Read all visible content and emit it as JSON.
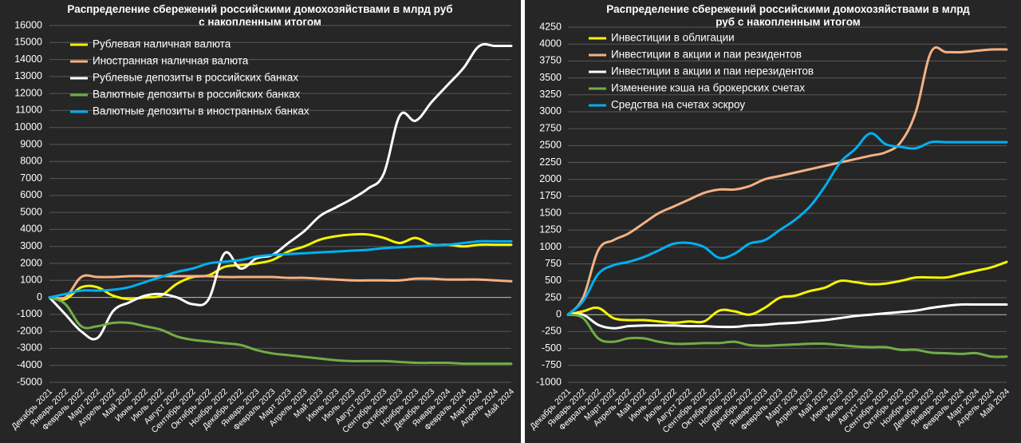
{
  "chart_data": [
    {
      "type": "line",
      "title": "Распределение сбережений российскими домохозяйствами в млрд руб с накопленным итогом",
      "title_lines": [
        "Распределение сбережений российскими домохозяйствами в млрд руб",
        "с накопленным итогом"
      ],
      "ylim": [
        -5000,
        16000
      ],
      "ytick_step": 1000,
      "yticks": [
        "-5000",
        "-4000",
        "-3000",
        "-2000",
        "-1000",
        "0",
        "1000",
        "2000",
        "3000",
        "4000",
        "5000",
        "6000",
        "7000",
        "8000",
        "9000",
        "10000",
        "11000",
        "12000",
        "13000",
        "14000",
        "15000",
        "16000"
      ],
      "grid": true,
      "legend_position": "top-left",
      "x": [
        "Декабрь 2021",
        "Январь 2022",
        "Февраль 2022",
        "Март 2022",
        "Апрель 2022",
        "Май 2022",
        "Июнь 2022",
        "Июль 2022",
        "Август 2022",
        "Сентябрь 2022",
        "Октябрь 2022",
        "Ноябрь 2022",
        "Декабрь 2022",
        "Январь 2023",
        "Февраль 2023",
        "Март 2023",
        "Апрель 2023",
        "Май 2023",
        "Июнь 2023",
        "Июль 2023",
        "Август 2023",
        "Сентябрь 2023",
        "Октябрь 2023",
        "Ноябрь 2023",
        "Декабрь 2023",
        "Январь 2024",
        "Февраль 2024",
        "Март 2024",
        "Апрель 2024",
        "Май 2024"
      ],
      "series": [
        {
          "name": "Рублевая наличная валюта",
          "color": "#f5f500",
          "values": [
            0,
            -100,
            600,
            600,
            100,
            -100,
            0,
            100,
            800,
            1200,
            1300,
            1800,
            1900,
            2000,
            2200,
            2700,
            3000,
            3400,
            3600,
            3700,
            3700,
            3500,
            3200,
            3500,
            3100,
            3100,
            3000,
            3100,
            3100,
            3100
          ]
        },
        {
          "name": "Иностранная наличная валюта",
          "color": "#f4b183",
          "values": [
            0,
            0,
            1200,
            1200,
            1200,
            1250,
            1250,
            1250,
            1250,
            1250,
            1250,
            1200,
            1200,
            1200,
            1200,
            1150,
            1150,
            1100,
            1050,
            1000,
            1000,
            1000,
            1000,
            1100,
            1100,
            1050,
            1050,
            1050,
            1000,
            950
          ]
        },
        {
          "name": "Рублевые депозиты в российских банках",
          "color": "#ffffff",
          "values": [
            0,
            -1000,
            -2000,
            -2400,
            -800,
            -300,
            100,
            200,
            0,
            -400,
            -100,
            2600,
            1700,
            2300,
            2500,
            3200,
            3900,
            4800,
            5300,
            5800,
            6400,
            7300,
            10700,
            10400,
            11500,
            12500,
            13500,
            14800,
            14800,
            14800
          ]
        },
        {
          "name": "Валютные депозиты в российских банках",
          "color": "#70ad47",
          "values": [
            0,
            -400,
            -1700,
            -1700,
            -1500,
            -1500,
            -1700,
            -1900,
            -2300,
            -2500,
            -2600,
            -2700,
            -2800,
            -3100,
            -3300,
            -3400,
            -3500,
            -3600,
            -3700,
            -3750,
            -3750,
            -3750,
            -3800,
            -3850,
            -3850,
            -3850,
            -3900,
            -3900,
            -3900,
            -3900
          ]
        },
        {
          "name": "Валютные депозиты в иностранных банках",
          "color": "#00b0f0",
          "values": [
            0,
            200,
            400,
            400,
            450,
            600,
            900,
            1200,
            1500,
            1700,
            2000,
            2100,
            2200,
            2400,
            2500,
            2550,
            2600,
            2650,
            2700,
            2750,
            2800,
            2900,
            2950,
            3000,
            3050,
            3100,
            3200,
            3300,
            3300,
            3300
          ]
        }
      ]
    },
    {
      "type": "line",
      "title": "Распределение сбережений российскими домохозяйствами в млрд руб с накопленным итогом",
      "title_lines": [
        "Распределение сбережений российскими домохозяйствами в млрд",
        "руб с накопленным итогом"
      ],
      "ylim": [
        -1000,
        4250
      ],
      "ytick_step": 250,
      "yticks": [
        "-1000",
        "-750",
        "-500",
        "-250",
        "0",
        "250",
        "500",
        "750",
        "1000",
        "1250",
        "1500",
        "1750",
        "2000",
        "2250",
        "2500",
        "2750",
        "3000",
        "3250",
        "3500",
        "3750",
        "4000",
        "4250"
      ],
      "grid": true,
      "legend_position": "top-left",
      "x": [
        "Декабрь 2021",
        "Январь 2022",
        "Февраль 2022",
        "Март 2022",
        "Апрель 2022",
        "Май 2022",
        "Июнь 2022",
        "Июль 2022",
        "Август 2022",
        "Сентябрь 2022",
        "Октябрь 2022",
        "Ноябрь 2022",
        "Декабрь 2022",
        "Январь 2023",
        "Февраль 2023",
        "Март 2023",
        "Апрель 2023",
        "Май 2023",
        "Июнь 2023",
        "Июль 2023",
        "Август 2023",
        "Сентябрь 2023",
        "Октябрь 2023",
        "Ноябрь 2023",
        "Декабрь 2023",
        "Январь 2024",
        "Февраль 2024",
        "Март 2024",
        "Апрель 2024",
        "Май 2024"
      ],
      "series": [
        {
          "name": "Инвестиции в облигации",
          "color": "#f5f500",
          "values": [
            0,
            50,
            100,
            -50,
            -80,
            -80,
            -100,
            -120,
            -100,
            -100,
            60,
            50,
            0,
            100,
            250,
            280,
            350,
            400,
            500,
            480,
            450,
            460,
            500,
            550,
            550,
            550,
            600,
            650,
            700,
            780
          ]
        },
        {
          "name": "Инвестиции в акции и паи резидентов",
          "color": "#f4b183",
          "values": [
            0,
            250,
            950,
            1100,
            1200,
            1350,
            1500,
            1600,
            1700,
            1800,
            1850,
            1850,
            1900,
            2000,
            2050,
            2100,
            2150,
            2200,
            2250,
            2300,
            2350,
            2400,
            2550,
            3000,
            3880,
            3880,
            3880,
            3900,
            3920,
            3920
          ]
        },
        {
          "name": "Инвестиции в акции и паи нерезидентов",
          "color": "#ffffff",
          "values": [
            0,
            0,
            -150,
            -200,
            -170,
            -160,
            -160,
            -160,
            -170,
            -170,
            -180,
            -180,
            -160,
            -150,
            -130,
            -120,
            -100,
            -80,
            -50,
            -20,
            0,
            20,
            40,
            60,
            100,
            130,
            150,
            150,
            150,
            150
          ]
        },
        {
          "name": "Изменение кэша на брокерских счетах",
          "color": "#70ad47",
          "values": [
            0,
            -50,
            -350,
            -400,
            -350,
            -350,
            -400,
            -430,
            -430,
            -420,
            -420,
            -400,
            -450,
            -460,
            -450,
            -440,
            -430,
            -430,
            -450,
            -470,
            -480,
            -480,
            -520,
            -520,
            -560,
            -570,
            -580,
            -570,
            -620,
            -620
          ]
        },
        {
          "name": "Средства на счетах эскроу",
          "color": "#00b0f0",
          "values": [
            0,
            200,
            600,
            730,
            780,
            850,
            950,
            1050,
            1060,
            1000,
            840,
            900,
            1050,
            1100,
            1250,
            1400,
            1600,
            1900,
            2250,
            2450,
            2680,
            2520,
            2480,
            2460,
            2550,
            2550,
            2550,
            2550,
            2550,
            2550
          ]
        }
      ]
    }
  ]
}
